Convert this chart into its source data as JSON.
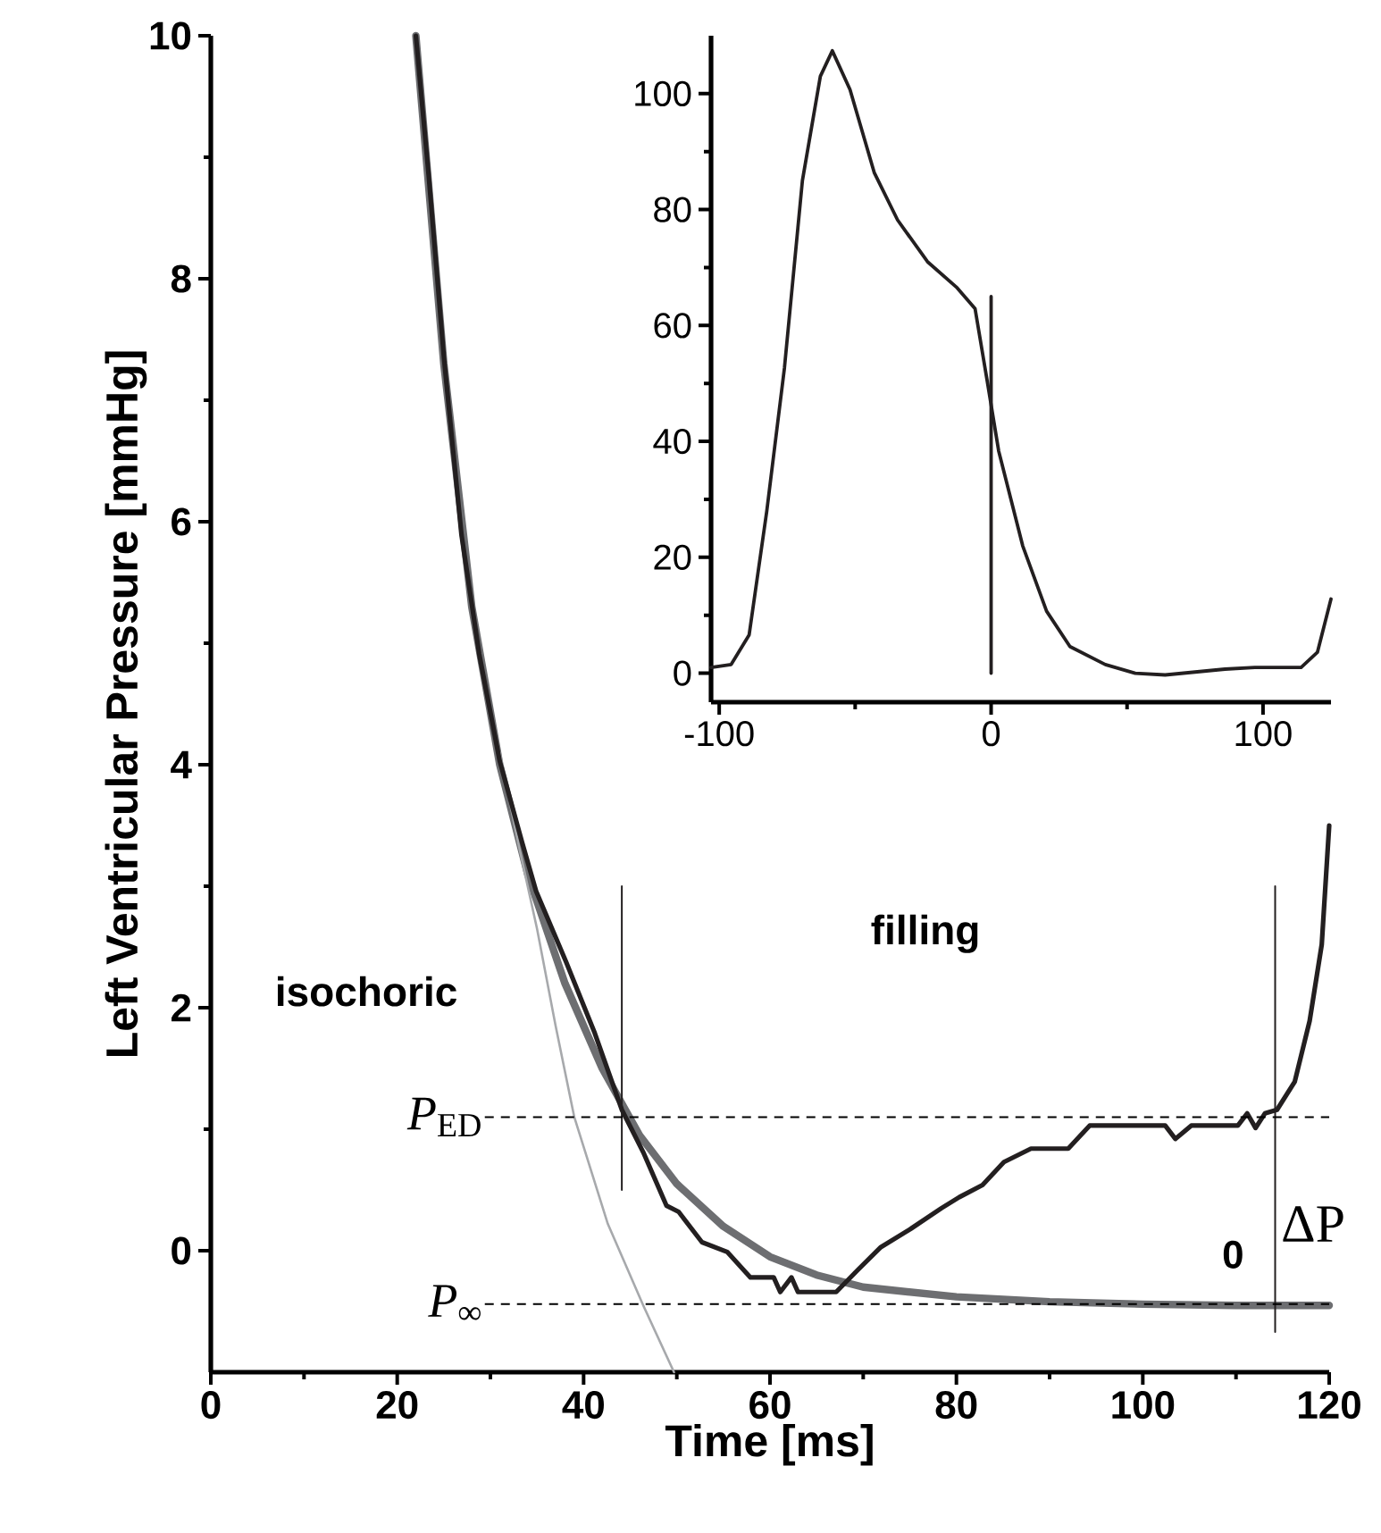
{
  "chart_data": [
    {
      "type": "line",
      "xlabel": "Time [ms]",
      "ylabel": "Left Ventricular Pressure [mmHg]",
      "xlim": [
        0,
        120
      ],
      "ylim": [
        -1,
        10
      ],
      "xticks": [
        0,
        20,
        40,
        60,
        80,
        100,
        120
      ],
      "yticks": [
        0,
        2,
        4,
        6,
        8,
        10
      ],
      "series": [
        {
          "color": "#6d6e71",
          "x": [
            22,
            25,
            28,
            31,
            34,
            38,
            42,
            46,
            50,
            55,
            60,
            65,
            70,
            80,
            90,
            100,
            110,
            120
          ],
          "values": [
            10,
            7.3,
            5.3,
            4.0,
            3.1,
            2.2,
            1.5,
            0.95,
            0.55,
            0.2,
            -0.05,
            -0.2,
            -0.3,
            -0.38,
            -0.42,
            -0.44,
            -0.45,
            -0.45
          ]
        },
        {
          "color": "#a7a9ac",
          "x": [
            31,
            33,
            35,
            37,
            39,
            42.6,
            46.4,
            49.7
          ],
          "values": [
            4.1,
            3.35,
            2.65,
            1.85,
            1.1,
            0.22,
            -0.45,
            -1
          ]
        },
        {
          "color": "#231f20",
          "x": [
            22,
            23.4,
            25,
            26.9,
            28.8,
            31,
            33.4,
            34.9,
            38.1,
            41.2,
            44.1,
            46.4,
            48.9,
            50.2,
            52.7,
            55.4,
            57.9,
            60.4,
            61.1,
            62.3,
            63,
            67.1,
            69.4,
            71.9,
            75.1,
            78.4,
            80.3,
            82.8,
            85.1,
            88,
            92,
            94.3,
            102.4,
            103.5,
            105.2,
            110.2,
            111.2,
            112.1,
            113.1,
            114.4,
            116.3,
            117.9,
            119.2,
            120
          ],
          "values": [
            10,
            8.83,
            7.36,
            5.89,
            4.91,
            4.03,
            3.36,
            2.96,
            2.38,
            1.79,
            1.16,
            0.81,
            0.37,
            0.32,
            0.07,
            -0.01,
            -0.22,
            -0.22,
            -0.34,
            -0.22,
            -0.34,
            -0.34,
            -0.16,
            0.03,
            0.18,
            0.35,
            0.44,
            0.54,
            0.73,
            0.84,
            0.84,
            1.03,
            1.03,
            0.92,
            1.03,
            1.03,
            1.13,
            1.01,
            1.13,
            1.16,
            1.39,
            1.89,
            2.52,
            3.5
          ]
        },
        {
          "color": "#231f20",
          "x": [
            44.1,
            44.1
          ],
          "values": [
            3.0,
            0.5
          ]
        },
        {
          "color": "#231f20",
          "x": [
            114.2,
            114.2
          ],
          "values": [
            3.0,
            -0.67
          ]
        }
      ],
      "ref_lines": [
        {
          "axis": "y",
          "value": 1.1,
          "label": "*P*$_{ED}$",
          "line_style": "dashed"
        },
        {
          "axis": "y",
          "value": -0.44,
          "label": "*P*$_{∞}$",
          "line_style": "dashed"
        }
      ],
      "annotations": [
        "isochoric",
        "filling",
        "ΔP",
        "0"
      ]
    },
    {
      "type": "line",
      "xlim": [
        -103,
        125
      ],
      "ylim": [
        -5,
        110
      ],
      "xticks": [
        -100,
        0,
        100
      ],
      "yticks": [
        0,
        20,
        40,
        60,
        80,
        100
      ],
      "series": [
        {
          "color": "#231f20",
          "x": [
            -103,
            -95.6,
            -89,
            -82.5,
            -76,
            -69.4,
            -62.8,
            -58.4,
            -51.9,
            -43,
            -34.4,
            -23.4,
            -12.5,
            -5.9,
            -1.5,
            2.8,
            11.6,
            20.4,
            29,
            42,
            53,
            64,
            86,
            97,
            114,
            120,
            125
          ],
          "values": [
            1,
            1.5,
            6.6,
            28,
            52.7,
            85,
            103,
            107.4,
            100.7,
            86.4,
            78.2,
            71,
            66.5,
            62.9,
            50.6,
            38.3,
            22,
            10.7,
            4.6,
            1.5,
            0,
            -0.3,
            0.7,
            1,
            1,
            3.6,
            12.8
          ]
        },
        {
          "color": "#231f20",
          "x": [
            0,
            0
          ],
          "values": [
            0,
            65
          ]
        }
      ]
    }
  ]
}
